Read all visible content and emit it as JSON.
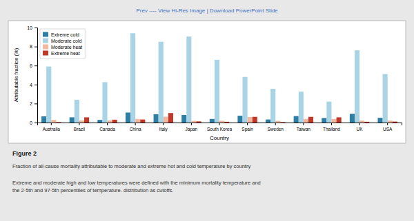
{
  "chart_data": {
    "type": "bar",
    "title": "Figure 2",
    "subtitle": "Fraction of all-cause mortality attributable to moderate and extreme hot and cold temperature by country",
    "annotations": [
      "Prev  ----  View Hi-Res Image  |  Download PowerPoint Slide",
      "Extreme and moderate high and low temperatures were defined with the minimum mortality temperature and\nthe 2·5th and 97·5th percentiles of temperature. distribution as cutoffs."
    ],
    "xlabel": "Country",
    "ylabel": "Attributable fraction (%)",
    "categories": [
      "Australia",
      "Brazil",
      "Canada",
      "China",
      "Italy",
      "Japan",
      "South Korea",
      "Spain",
      "Sweden",
      "Taiwan",
      "Thailand",
      "UK",
      "USA"
    ],
    "series": [
      {
        "name": "Extreme cold",
        "color": "#2e7fa3",
        "values": [
          0.65,
          0.55,
          0.28,
          1.05,
          0.88,
          0.8,
          0.38,
          0.72,
          0.32,
          0.68,
          0.48,
          0.92,
          0.5
        ]
      },
      {
        "name": "Moderate cold",
        "color": "#a8d4e6",
        "values": [
          5.9,
          2.4,
          4.25,
          9.4,
          8.5,
          9.05,
          6.6,
          4.8,
          3.55,
          3.25,
          2.2,
          7.6,
          5.1
        ]
      },
      {
        "name": "Moderate heat",
        "color": "#f2b9a0",
        "values": [
          0.28,
          0.22,
          0.22,
          0.38,
          0.62,
          0.18,
          0.18,
          0.58,
          0.18,
          0.38,
          0.38,
          0.2,
          0.2
        ]
      },
      {
        "name": "Extreme heat",
        "color": "#c0392b",
        "values": [
          0.05,
          0.55,
          0.3,
          0.32,
          1.0,
          0.12,
          0.08,
          0.6,
          0.05,
          0.6,
          0.55,
          0.08,
          0.1
        ]
      }
    ],
    "ylim": [
      0,
      10
    ],
    "yticks": [
      0,
      2,
      4,
      6,
      8,
      10
    ],
    "grid": false,
    "legend": "upper left"
  }
}
